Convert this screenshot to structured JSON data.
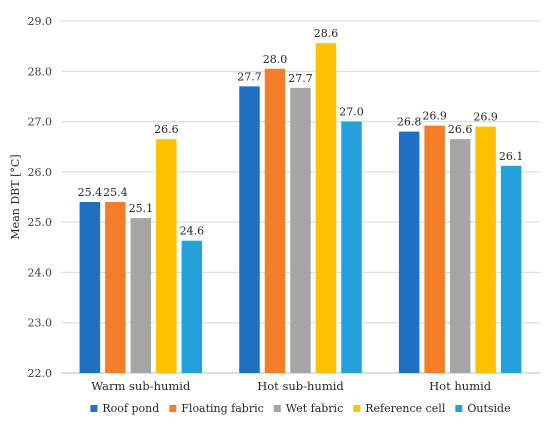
{
  "chart_data": {
    "type": "bar",
    "ylabel": "Mean DBT [°C]",
    "xlabel": "",
    "ylim": [
      22.0,
      29.0
    ],
    "yticks": [
      "22.0",
      "23.0",
      "24.0",
      "25.0",
      "26.0",
      "27.0",
      "28.0",
      "29.0"
    ],
    "grid": true,
    "legend_position": "bottom",
    "categories": [
      "Warm sub-humid",
      "Hot sub-humid",
      "Hot humid"
    ],
    "series": [
      {
        "name": "Roof pond",
        "color": "#1f6fc5",
        "values": [
          25.4,
          27.7,
          26.8
        ],
        "labels": [
          "25.4",
          "27.7",
          "26.8"
        ]
      },
      {
        "name": "Floating fabric",
        "color": "#f47d2a",
        "values": [
          25.4,
          28.05,
          26.92
        ],
        "labels": [
          "25.4",
          "28.0",
          "26.9"
        ]
      },
      {
        "name": "Wet fabric",
        "color": "#a5a5a5",
        "values": [
          25.08,
          27.67,
          26.65
        ],
        "labels": [
          "25.1",
          "27.7",
          "26.6"
        ]
      },
      {
        "name": "Reference cell",
        "color": "#ffc000",
        "values": [
          26.65,
          28.56,
          26.9
        ],
        "labels": [
          "26.6",
          "28.6",
          "26.9"
        ]
      },
      {
        "name": "Outside",
        "color": "#24a0db",
        "values": [
          24.63,
          27.0,
          26.12
        ],
        "labels": [
          "24.6",
          "27.0",
          "26.1"
        ]
      }
    ]
  }
}
